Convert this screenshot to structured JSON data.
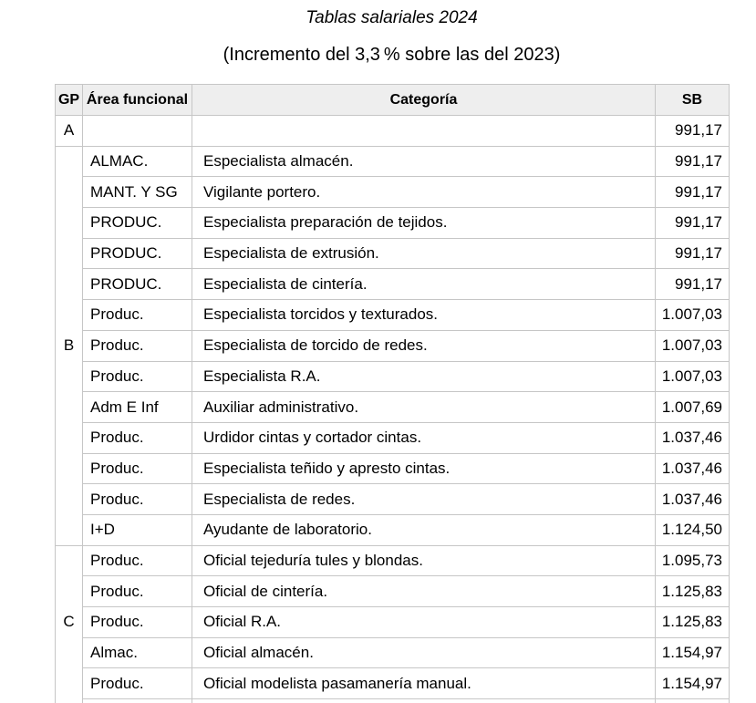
{
  "document": {
    "title": "Tablas salariales 2024",
    "subtitle": "(Incremento del 3,3 % sobre las del 2023)"
  },
  "table": {
    "columns": [
      "GP",
      "Área funcional",
      "Categoría",
      "SB"
    ],
    "groups": [
      {
        "gp": "A",
        "continues_below": false,
        "rows": [
          {
            "area": "",
            "categoria": "",
            "sb": "991,17"
          }
        ]
      },
      {
        "gp": "B",
        "continues_below": false,
        "rows": [
          {
            "area": "ALMAC.",
            "categoria": "Especialista almacén.",
            "sb": "991,17"
          },
          {
            "area": "MANT. Y SG",
            "categoria": "Vigilante portero.",
            "sb": "991,17"
          },
          {
            "area": "PRODUC.",
            "categoria": "Especialista preparación de tejidos.",
            "sb": "991,17"
          },
          {
            "area": "PRODUC.",
            "categoria": "Especialista de extrusión.",
            "sb": "991,17"
          },
          {
            "area": "PRODUC.",
            "categoria": "Especialista de cintería.",
            "sb": "991,17"
          },
          {
            "area": "Produc.",
            "categoria": "Especialista torcidos y texturados.",
            "sb": "1.007,03"
          },
          {
            "area": "Produc.",
            "categoria": "Especialista de torcido de redes.",
            "sb": "1.007,03"
          },
          {
            "area": "Produc.",
            "categoria": "Especialista R.A.",
            "sb": "1.007,03"
          },
          {
            "area": "Adm E Inf",
            "categoria": "Auxiliar administrativo.",
            "sb": "1.007,69"
          },
          {
            "area": "Produc.",
            "categoria": "Urdidor cintas y cortador cintas.",
            "sb": "1.037,46"
          },
          {
            "area": "Produc.",
            "categoria": "Especialista teñido y apresto cintas.",
            "sb": "1.037,46"
          },
          {
            "area": "Produc.",
            "categoria": "Especialista de redes.",
            "sb": "1.037,46"
          },
          {
            "area": "I+D",
            "categoria": "Ayudante de laboratorio.",
            "sb": "1.124,50"
          }
        ]
      },
      {
        "gp": "C",
        "continues_below": true,
        "rows": [
          {
            "area": "Produc.",
            "categoria": "Oficial tejeduría tules y blondas.",
            "sb": "1.095,73"
          },
          {
            "area": "Produc.",
            "categoria": "Oficial de cintería.",
            "sb": "1.125,83"
          },
          {
            "area": "Produc.",
            "categoria": "Oficial R.A.",
            "sb": "1.125,83"
          },
          {
            "area": "Almac.",
            "categoria": "Oficial almacén.",
            "sb": "1.154,97"
          },
          {
            "area": "Produc.",
            "categoria": "Oficial modelista pasamanería manual.",
            "sb": "1.154,97"
          }
        ]
      }
    ]
  },
  "colors": {
    "background": "#ffffff",
    "header_bg": "#eeeeee",
    "border": "#c6c6c6",
    "text": "#000000"
  }
}
